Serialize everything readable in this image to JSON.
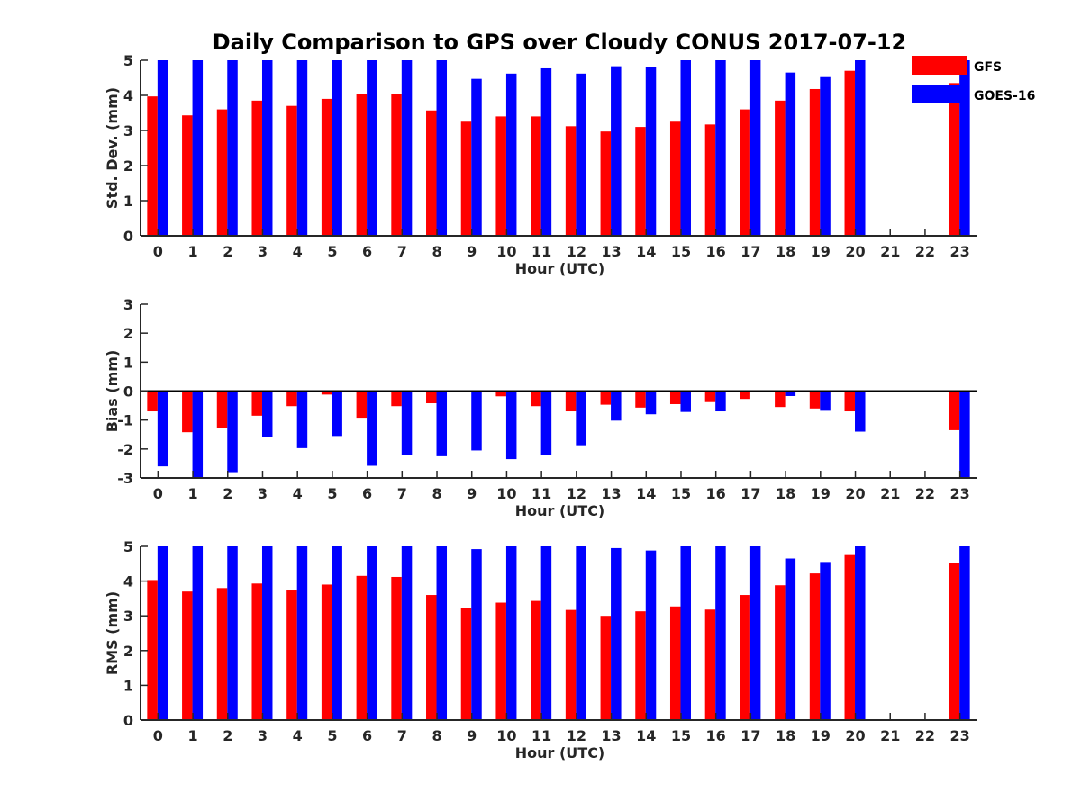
{
  "title": "Daily Comparison to GPS over Cloudy CONUS 2017-07-12",
  "legend": [
    {
      "label": "GFS",
      "color": "#ff0000"
    },
    {
      "label": "GOES-16",
      "color": "#0000ff"
    }
  ],
  "chart_data": [
    {
      "type": "bar",
      "xlabel": "Hour (UTC)",
      "ylabel": "Std. Dev. (mm)",
      "ylim": [
        0,
        5
      ],
      "yticks": [
        0,
        1,
        2,
        3,
        4,
        5
      ],
      "categories": [
        "0",
        "1",
        "2",
        "3",
        "4",
        "5",
        "6",
        "7",
        "8",
        "9",
        "10",
        "11",
        "12",
        "13",
        "14",
        "15",
        "16",
        "17",
        "18",
        "19",
        "20",
        "21",
        "22",
        "23"
      ],
      "series": [
        {
          "name": "GFS",
          "values": [
            3.97,
            3.43,
            3.6,
            3.85,
            3.7,
            3.9,
            4.03,
            4.05,
            3.57,
            3.25,
            3.4,
            3.4,
            3.12,
            2.97,
            3.1,
            3.25,
            3.17,
            3.6,
            3.85,
            4.18,
            4.7,
            null,
            null,
            4.35
          ]
        },
        {
          "name": "GOES-16",
          "values": [
            5.0,
            5.0,
            5.0,
            5.0,
            5.0,
            5.0,
            5.0,
            5.0,
            5.0,
            4.47,
            4.62,
            4.77,
            4.62,
            4.83,
            4.8,
            5.0,
            5.0,
            5.0,
            4.65,
            4.52,
            5.0,
            null,
            null,
            5.0
          ]
        }
      ]
    },
    {
      "type": "bar",
      "xlabel": "Hour (UTC)",
      "ylabel": "Bias (mm)",
      "ylim": [
        -3,
        3
      ],
      "yticks": [
        -3,
        -2,
        -1,
        0,
        1,
        2,
        3
      ],
      "zero_line": true,
      "categories": [
        "0",
        "1",
        "2",
        "3",
        "4",
        "5",
        "6",
        "7",
        "8",
        "9",
        "10",
        "11",
        "12",
        "13",
        "14",
        "15",
        "16",
        "17",
        "18",
        "19",
        "20",
        "21",
        "22",
        "23"
      ],
      "series": [
        {
          "name": "GFS",
          "values": [
            -0.7,
            -1.42,
            -1.27,
            -0.85,
            -0.52,
            -0.12,
            -0.92,
            -0.52,
            -0.42,
            -0.03,
            -0.18,
            -0.52,
            -0.7,
            -0.47,
            -0.57,
            -0.45,
            -0.38,
            -0.27,
            -0.55,
            -0.6,
            -0.7,
            null,
            null,
            -1.35
          ]
        },
        {
          "name": "GOES-16",
          "values": [
            -2.6,
            -3.0,
            -2.8,
            -1.57,
            -1.97,
            -1.55,
            -2.58,
            -2.2,
            -2.25,
            -2.05,
            -2.35,
            -2.2,
            -1.87,
            -1.02,
            -0.8,
            -0.72,
            -0.7,
            -0.03,
            -0.17,
            -0.68,
            -1.4,
            null,
            null,
            -3.0
          ]
        }
      ]
    },
    {
      "type": "bar",
      "xlabel": "Hour (UTC)",
      "ylabel": "RMS (mm)",
      "ylim": [
        0,
        5
      ],
      "yticks": [
        0,
        1,
        2,
        3,
        4,
        5
      ],
      "categories": [
        "0",
        "1",
        "2",
        "3",
        "4",
        "5",
        "6",
        "7",
        "8",
        "9",
        "10",
        "11",
        "12",
        "13",
        "14",
        "15",
        "16",
        "17",
        "18",
        "19",
        "20",
        "21",
        "22",
        "23"
      ],
      "series": [
        {
          "name": "GFS",
          "values": [
            4.03,
            3.7,
            3.8,
            3.93,
            3.73,
            3.9,
            4.15,
            4.12,
            3.6,
            3.23,
            3.38,
            3.43,
            3.17,
            3.0,
            3.13,
            3.27,
            3.18,
            3.6,
            3.88,
            4.22,
            4.75,
            null,
            null,
            4.53
          ]
        },
        {
          "name": "GOES-16",
          "values": [
            5.0,
            5.0,
            5.0,
            5.0,
            5.0,
            5.0,
            5.0,
            5.0,
            5.0,
            4.92,
            5.0,
            5.0,
            5.0,
            4.95,
            4.88,
            5.0,
            5.0,
            5.0,
            4.65,
            4.55,
            5.0,
            null,
            null,
            5.0
          ]
        }
      ]
    }
  ]
}
